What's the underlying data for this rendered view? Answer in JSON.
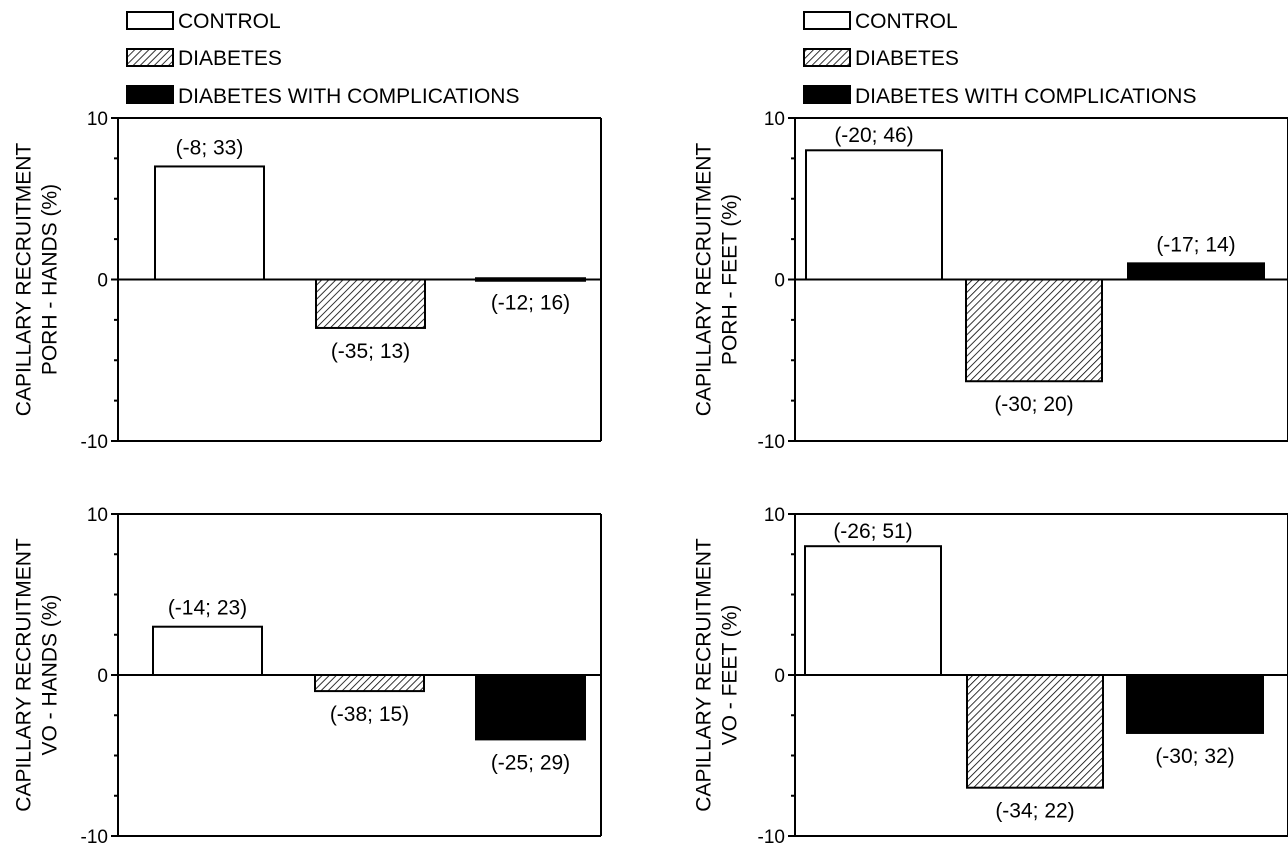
{
  "legend": {
    "items": [
      {
        "label": "CONTROL",
        "fill": "white"
      },
      {
        "label": "DIABETES",
        "fill": "hatch"
      },
      {
        "label": "DIABETES WITH COMPLICATIONS",
        "fill": "black"
      }
    ]
  },
  "chart_data": [
    {
      "type": "bar",
      "ylabel_line1": "CAPILLARY RECRUITMENT",
      "ylabel_line2": "PORH - HANDS (%)",
      "ylim": [
        -10,
        10
      ],
      "yticks": [
        "10",
        "0",
        "-10"
      ],
      "categories": [
        "CONTROL",
        "DIABETES",
        "DIABETES WITH COMPLICATIONS"
      ],
      "values": [
        7,
        -3,
        0
      ],
      "annotations": [
        "(-8; 33)",
        "(-35; 13)",
        "(-12; 16)"
      ]
    },
    {
      "type": "bar",
      "ylabel_line1": "CAPILLARY RECRUITMENT",
      "ylabel_line2": "PORH - FEET (%)",
      "ylim": [
        -10,
        10
      ],
      "yticks": [
        "10",
        "0",
        "-10"
      ],
      "categories": [
        "CONTROL",
        "DIABETES",
        "DIABETES WITH COMPLICATIONS"
      ],
      "values": [
        8,
        -6.3,
        1
      ],
      "annotations": [
        "(-20; 46)",
        "(-30; 20)",
        "(-17; 14)"
      ]
    },
    {
      "type": "bar",
      "ylabel_line1": "CAPILLARY RECRUITMENT",
      "ylabel_line2": "VO - HANDS (%)",
      "ylim": [
        -10,
        10
      ],
      "yticks": [
        "10",
        "0",
        "-10"
      ],
      "categories": [
        "CONTROL",
        "DIABETES",
        "DIABETES WITH COMPLICATIONS"
      ],
      "values": [
        3,
        -1,
        -4
      ],
      "annotations": [
        "(-14; 23)",
        "(-38; 15)",
        "(-25; 29)"
      ]
    },
    {
      "type": "bar",
      "ylabel_line1": "CAPILLARY RECRUITMENT",
      "ylabel_line2": "VO - FEET (%)",
      "ylim": [
        -10,
        10
      ],
      "yticks": [
        "10",
        "0",
        "-10"
      ],
      "categories": [
        "CONTROL",
        "DIABETES",
        "DIABETES WITH COMPLICATIONS"
      ],
      "values": [
        8,
        -7,
        -3.6
      ],
      "annotations": [
        "(-26; 51)",
        "(-34; 22)",
        "(-30; 32)"
      ]
    }
  ]
}
